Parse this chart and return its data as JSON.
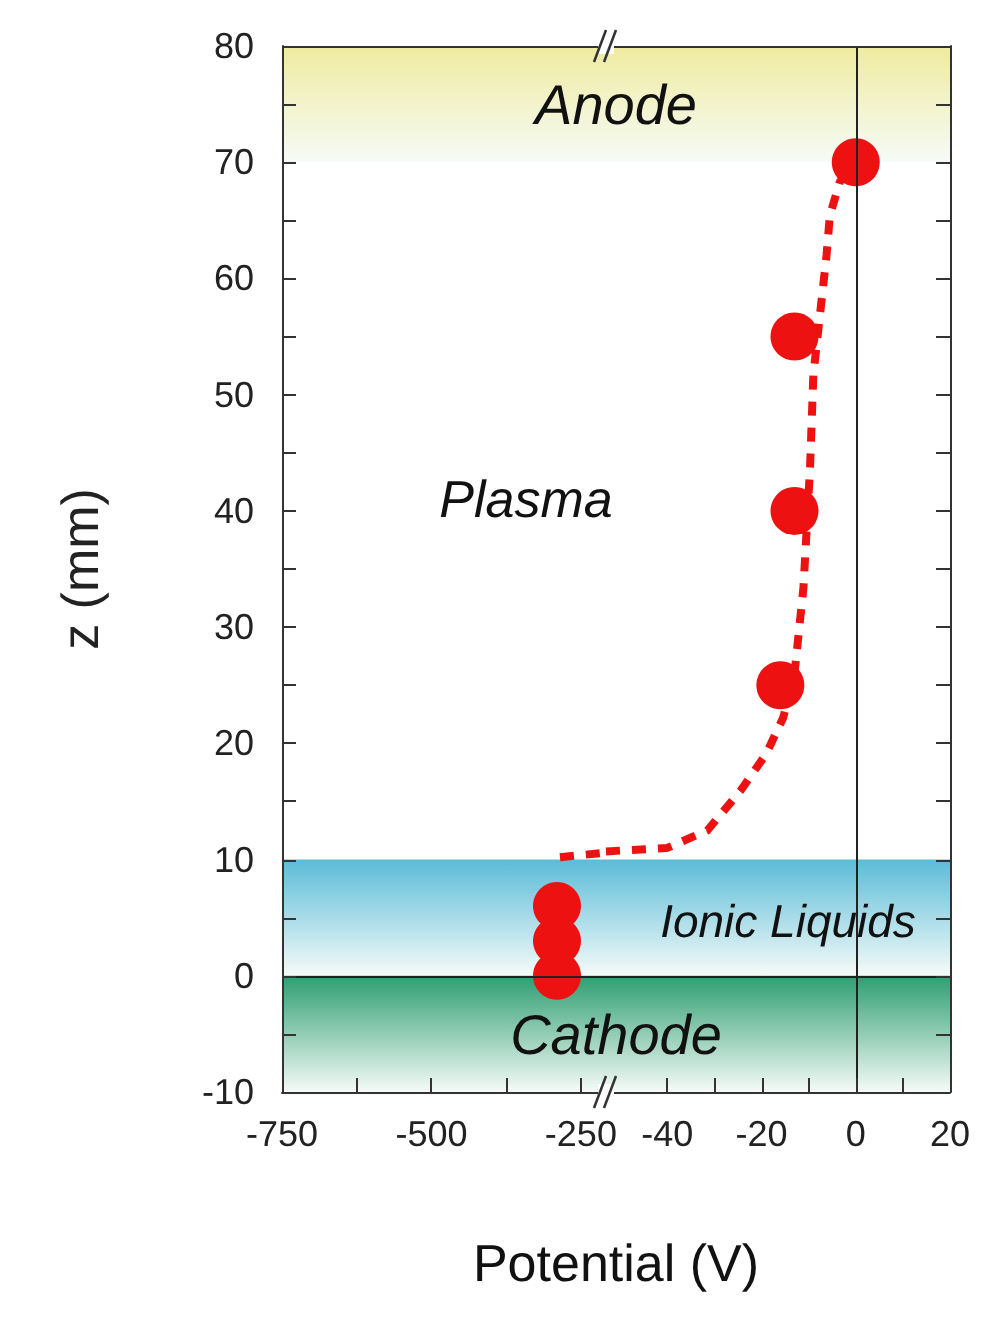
{
  "chart_data": [
    {
      "type": "scatter",
      "ylabel": "z (mm)",
      "xlabel": "Potential (V)",
      "annotations": [
        "Plasma"
      ],
      "xlim": [
        -750,
        -208
      ],
      "xticks": [
        -750,
        {
          "value": -625,
          "label": null
        },
        -500,
        {
          "value": -375,
          "label": null
        },
        -250
      ],
      "ylim": [
        -10,
        80
      ],
      "yticks": [
        -10,
        {
          "value": -5,
          "label": null
        },
        0,
        {
          "value": 5,
          "label": null
        },
        10,
        {
          "value": 15,
          "label": null
        },
        20,
        {
          "value": 25,
          "label": null
        },
        30,
        {
          "value": 35,
          "label": null
        },
        40,
        {
          "value": 45,
          "label": null
        },
        50,
        {
          "value": 55,
          "label": null
        },
        60,
        {
          "value": 65,
          "label": null
        },
        70,
        {
          "value": 75,
          "label": null
        },
        80
      ],
      "series": [
        {
          "type": "line",
          "color": "#ee1111",
          "marker": "none",
          "line_style": "dashed",
          "x": [
            -285,
            -208
          ],
          "values": [
            10.2,
            10.6
          ]
        },
        {
          "type": "scatter",
          "color": "#ee1111",
          "marker": "circle",
          "x": [
            -290,
            -290,
            -290
          ],
          "values": [
            0,
            3,
            6
          ]
        }
      ],
      "bands": [
        {
          "axis": "y",
          "from": 70,
          "to": 80,
          "label": "Anode",
          "color": "#efeba0"
        },
        {
          "axis": "y",
          "from": 0,
          "to": 10,
          "color": "#5bbcd8"
        },
        {
          "axis": "y",
          "from": -10,
          "to": 0,
          "label": "Cathode",
          "color": "#2e9e72"
        }
      ],
      "ref_lines": [
        {
          "axis": "y",
          "value": 0
        }
      ]
    },
    {
      "type": "scatter",
      "tick_labels": "x",
      "xlim": [
        -53,
        20
      ],
      "xticks": [
        -40,
        {
          "value": -30,
          "label": null
        },
        -20,
        {
          "value": -10,
          "label": null
        },
        0,
        {
          "value": 10,
          "label": null
        },
        20
      ],
      "ylim": [
        -10,
        80
      ],
      "yticks": [
        -10,
        {
          "value": -5,
          "label": null
        },
        0,
        {
          "value": 5,
          "label": null
        },
        10,
        {
          "value": 15,
          "label": null
        },
        20,
        {
          "value": 25,
          "label": null
        },
        30,
        {
          "value": 35,
          "label": null
        },
        40,
        {
          "value": 45,
          "label": null
        },
        50,
        {
          "value": 55,
          "label": null
        },
        60,
        {
          "value": 65,
          "label": null
        },
        70,
        {
          "value": 75,
          "label": null
        },
        80
      ],
      "series": [
        {
          "type": "line",
          "color": "#ee1111",
          "marker": "none",
          "line_style": "dashed",
          "x": [
            -53,
            -40,
            -31.5,
            -24.5,
            -19,
            -15.4,
            -13,
            -11.1,
            -9.7,
            -9,
            -6.2,
            -5.5,
            -3.4,
            0
          ],
          "values": [
            10.7,
            11.0,
            12.5,
            15.9,
            19.1,
            22.2,
            26,
            33.4,
            43.7,
            51.7,
            62,
            65.4,
            68.3,
            70
          ]
        },
        {
          "type": "scatter",
          "color": "#ee1111",
          "marker": "circle",
          "x": [
            -16,
            -13,
            -13,
            0
          ],
          "values": [
            25,
            40,
            55,
            70
          ]
        }
      ],
      "bands": [
        {
          "axis": "y",
          "from": 70,
          "to": 80,
          "color": "#efeba0"
        },
        {
          "axis": "y",
          "from": 0,
          "to": 10,
          "label": "Ionic Liquids",
          "color": "#5bbcd8"
        },
        {
          "axis": "y",
          "from": -10,
          "to": 0,
          "color": "#2e9e72"
        }
      ],
      "ref_lines": [
        {
          "axis": "y",
          "value": 0
        },
        {
          "axis": "x",
          "value": 0
        }
      ]
    }
  ]
}
